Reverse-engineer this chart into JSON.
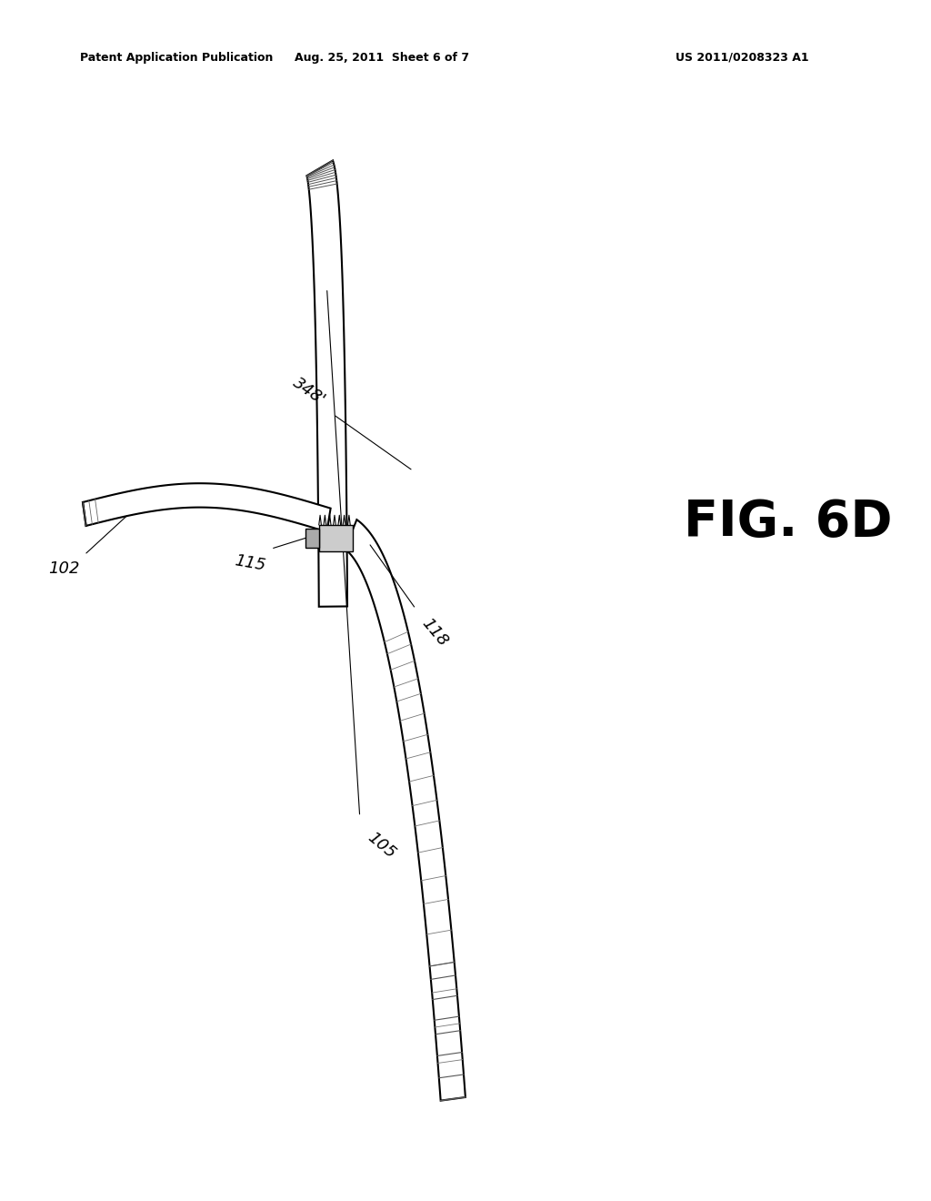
{
  "background_color": "#ffffff",
  "header_left": "Patent Application Publication",
  "header_mid": "Aug. 25, 2011  Sheet 6 of 7",
  "header_right": "US 2011/0208323 A1",
  "fig_label": "FIG. 6D"
}
